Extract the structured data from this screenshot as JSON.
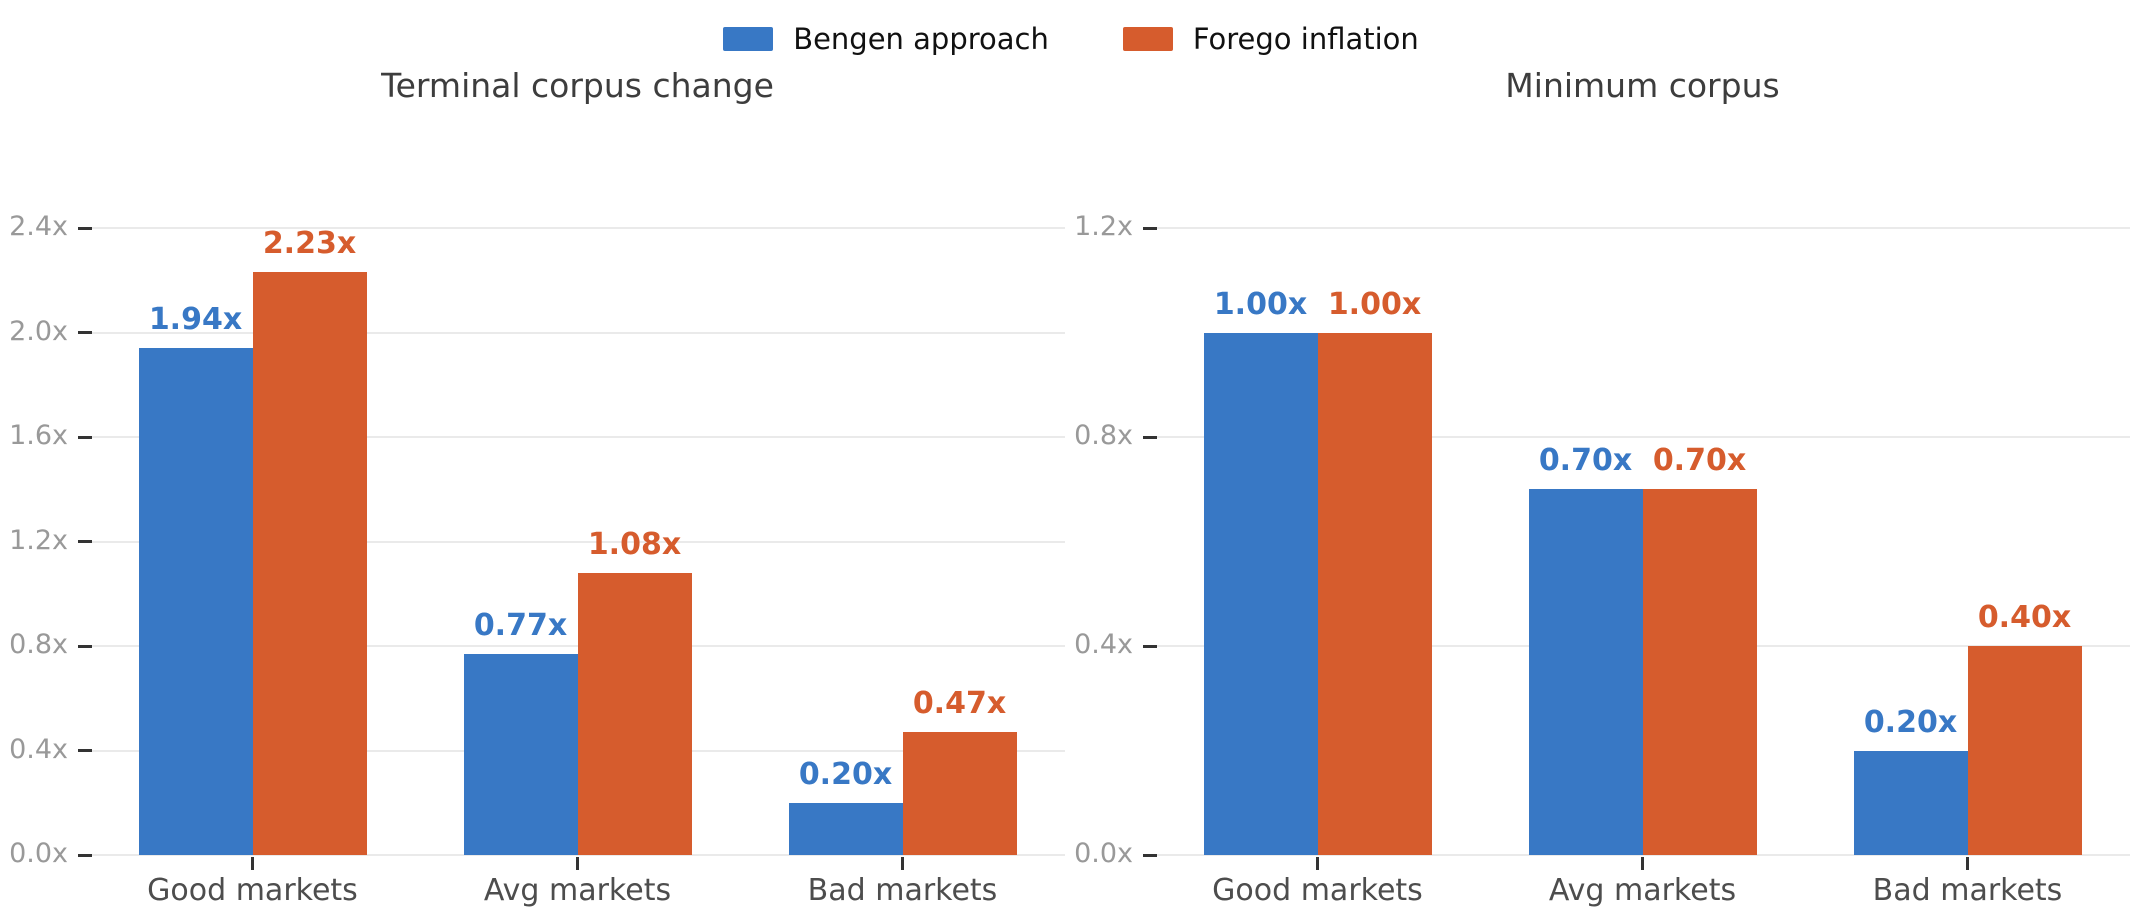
{
  "legend": {
    "items": [
      {
        "label": "Bengen approach",
        "color": "#3878c5"
      },
      {
        "label": "Forego inflation",
        "color": "#d65c2d"
      }
    ]
  },
  "chart_data": [
    {
      "type": "bar",
      "title": "Terminal corpus change",
      "categories": [
        "Good markets",
        "Avg markets",
        "Bad markets"
      ],
      "series": [
        {
          "name": "Bengen approach",
          "color": "#3878c5",
          "values": [
            1.94,
            0.77,
            0.2
          ],
          "value_labels": [
            "1.94x",
            "0.77x",
            "0.20x"
          ]
        },
        {
          "name": "Forego inflation",
          "color": "#d65c2d",
          "values": [
            2.23,
            1.08,
            0.47
          ],
          "value_labels": [
            "2.23x",
            "1.08x",
            "0.47x"
          ]
        }
      ],
      "ylim": [
        0,
        2.4
      ],
      "yticks": [
        {
          "v": 0.0,
          "label": "0.0x"
        },
        {
          "v": 0.4,
          "label": "0.4x"
        },
        {
          "v": 0.8,
          "label": "0.8x"
        },
        {
          "v": 1.2,
          "label": "1.2x"
        },
        {
          "v": 1.6,
          "label": "1.6x"
        },
        {
          "v": 2.0,
          "label": "2.0x"
        },
        {
          "v": 2.4,
          "label": "2.4x"
        }
      ],
      "grid": true,
      "legend_position": "top-center"
    },
    {
      "type": "bar",
      "title": "Minimum corpus",
      "categories": [
        "Good markets",
        "Avg markets",
        "Bad markets"
      ],
      "series": [
        {
          "name": "Bengen approach",
          "color": "#3878c5",
          "values": [
            1.0,
            0.7,
            0.2
          ],
          "value_labels": [
            "1.00x",
            "0.70x",
            "0.20x"
          ]
        },
        {
          "name": "Forego inflation",
          "color": "#d65c2d",
          "values": [
            1.0,
            0.7,
            0.4
          ],
          "value_labels": [
            "1.00x",
            "0.70x",
            "0.40x"
          ]
        }
      ],
      "ylim": [
        0,
        1.2
      ],
      "yticks": [
        {
          "v": 0.0,
          "label": "0.0x"
        },
        {
          "v": 0.4,
          "label": "0.4x"
        },
        {
          "v": 0.8,
          "label": "0.8x"
        },
        {
          "v": 1.2,
          "label": "1.2x"
        }
      ],
      "grid": true,
      "legend_position": "top-center"
    }
  ],
  "colors": {
    "grid": "#eaeaea",
    "tick": "#333333",
    "tick_label": "#999999",
    "category_label": "#4d4d4d",
    "title": "#3d3d3d",
    "legend_text": "#111111",
    "background": "#ffffff"
  }
}
